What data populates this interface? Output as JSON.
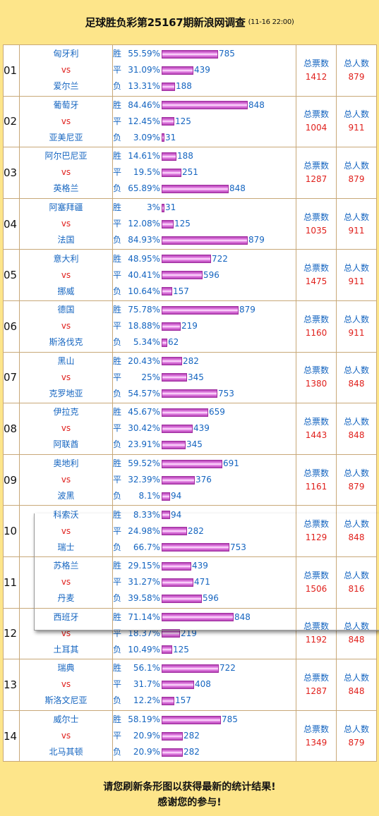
{
  "title": "足球胜负彩第25167期新浪网调查",
  "date": "(11-16 22:00)",
  "labels": {
    "win": "胜",
    "draw": "平",
    "lose": "负",
    "vs": "vs",
    "total_votes": "总票数",
    "total_people": "总人数"
  },
  "footer": {
    "line1": "请您刷新条形图以获得最新的统计结果!",
    "line2": "感谢您的参与!"
  },
  "matches": [
    {
      "no": "01",
      "home": "匈牙利",
      "away": "爱尔兰",
      "win": {
        "pct": "55.59%",
        "count": 785
      },
      "draw": {
        "pct": "31.09%",
        "count": 439
      },
      "lose": {
        "pct": "13.31%",
        "count": 188
      },
      "votes": "1412",
      "people": "879"
    },
    {
      "no": "02",
      "home": "葡萄牙",
      "away": "亚美尼亚",
      "win": {
        "pct": "84.46%",
        "count": 848
      },
      "draw": {
        "pct": "12.45%",
        "count": 125
      },
      "lose": {
        "pct": "3.09%",
        "count": 31
      },
      "votes": "1004",
      "people": "911"
    },
    {
      "no": "03",
      "home": "阿尔巴尼亚",
      "away": "英格兰",
      "win": {
        "pct": "14.61%",
        "count": 188
      },
      "draw": {
        "pct": "19.5%",
        "count": 251
      },
      "lose": {
        "pct": "65.89%",
        "count": 848
      },
      "votes": "1287",
      "people": "879"
    },
    {
      "no": "04",
      "home": "阿塞拜疆",
      "away": "法国",
      "win": {
        "pct": "3%",
        "count": 31
      },
      "draw": {
        "pct": "12.08%",
        "count": 125
      },
      "lose": {
        "pct": "84.93%",
        "count": 879
      },
      "votes": "1035",
      "people": "911"
    },
    {
      "no": "05",
      "home": "意大利",
      "away": "挪威",
      "win": {
        "pct": "48.95%",
        "count": 722
      },
      "draw": {
        "pct": "40.41%",
        "count": 596
      },
      "lose": {
        "pct": "10.64%",
        "count": 157
      },
      "votes": "1475",
      "people": "911"
    },
    {
      "no": "06",
      "home": "德国",
      "away": "斯洛伐克",
      "win": {
        "pct": "75.78%",
        "count": 879
      },
      "draw": {
        "pct": "18.88%",
        "count": 219
      },
      "lose": {
        "pct": "5.34%",
        "count": 62
      },
      "votes": "1160",
      "people": "911"
    },
    {
      "no": "07",
      "home": "黑山",
      "away": "克罗地亚",
      "win": {
        "pct": "20.43%",
        "count": 282
      },
      "draw": {
        "pct": "25%",
        "count": 345
      },
      "lose": {
        "pct": "54.57%",
        "count": 753
      },
      "votes": "1380",
      "people": "848"
    },
    {
      "no": "08",
      "home": "伊拉克",
      "away": "阿联酋",
      "win": {
        "pct": "45.67%",
        "count": 659
      },
      "draw": {
        "pct": "30.42%",
        "count": 439
      },
      "lose": {
        "pct": "23.91%",
        "count": 345
      },
      "votes": "1443",
      "people": "848"
    },
    {
      "no": "09",
      "home": "奥地利",
      "away": "波黑",
      "win": {
        "pct": "59.52%",
        "count": 691
      },
      "draw": {
        "pct": "32.39%",
        "count": 376
      },
      "lose": {
        "pct": "8.1%",
        "count": 94
      },
      "votes": "1161",
      "people": "879"
    },
    {
      "no": "10",
      "home": "科索沃",
      "away": "瑞士",
      "win": {
        "pct": "8.33%",
        "count": 94
      },
      "draw": {
        "pct": "24.98%",
        "count": 282
      },
      "lose": {
        "pct": "66.7%",
        "count": 753
      },
      "votes": "1129",
      "people": "848"
    },
    {
      "no": "11",
      "home": "苏格兰",
      "away": "丹麦",
      "win": {
        "pct": "29.15%",
        "count": 439
      },
      "draw": {
        "pct": "31.27%",
        "count": 471
      },
      "lose": {
        "pct": "39.58%",
        "count": 596
      },
      "votes": "1506",
      "people": "816"
    },
    {
      "no": "12",
      "home": "西班牙",
      "away": "土耳其",
      "win": {
        "pct": "71.14%",
        "count": 848
      },
      "draw": {
        "pct": "18.37%",
        "count": 219
      },
      "lose": {
        "pct": "10.49%",
        "count": 125
      },
      "votes": "1192",
      "people": "848"
    },
    {
      "no": "13",
      "home": "瑞典",
      "away": "斯洛文尼亚",
      "win": {
        "pct": "56.1%",
        "count": 722
      },
      "draw": {
        "pct": "31.7%",
        "count": 408
      },
      "lose": {
        "pct": "12.2%",
        "count": 157
      },
      "votes": "1287",
      "people": "848"
    },
    {
      "no": "14",
      "home": "威尔士",
      "away": "北马其顿",
      "win": {
        "pct": "58.19%",
        "count": 785
      },
      "draw": {
        "pct": "20.9%",
        "count": 282
      },
      "lose": {
        "pct": "20.9%",
        "count": 282
      },
      "votes": "1349",
      "people": "879"
    }
  ]
}
